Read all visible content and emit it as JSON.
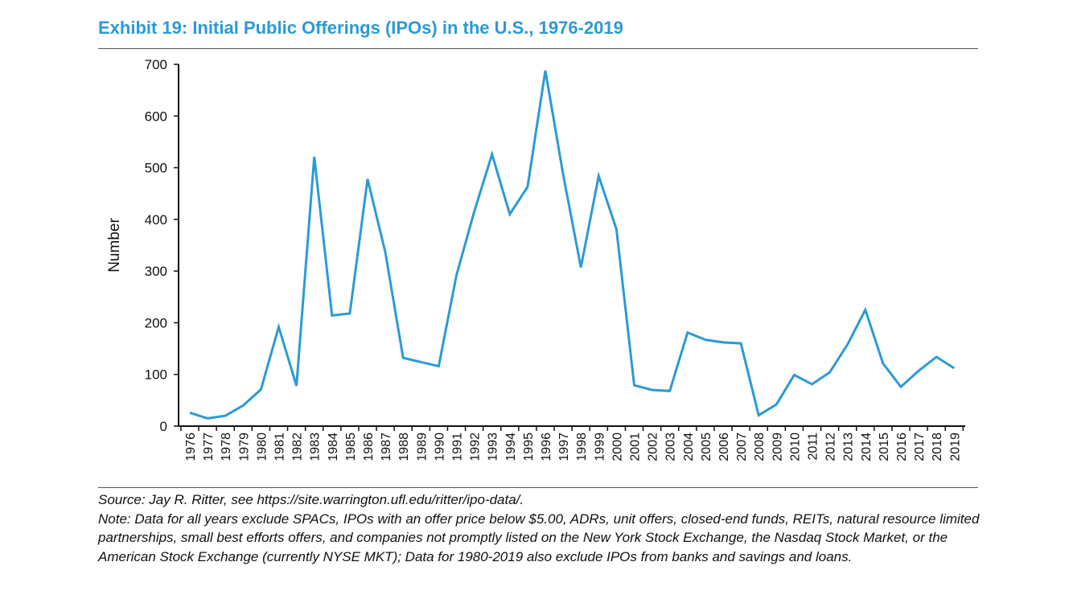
{
  "title": "Exhibit 19: Initial Public Offerings (IPOs) in the U.S., 1976-2019",
  "colors": {
    "title": "#2b9ad6",
    "line": "#2b9ad6",
    "axis": "#111111",
    "rule": "#555555"
  },
  "chart_data": {
    "type": "line",
    "title": "Exhibit 19: Initial Public Offerings (IPOs) in the U.S., 1976-2019",
    "xlabel": "",
    "ylabel": "Number",
    "ylim": [
      0,
      700
    ],
    "yticks": [
      0,
      100,
      200,
      300,
      400,
      500,
      600,
      700
    ],
    "grid": false,
    "legend": "none",
    "categories": [
      "1976",
      "1977",
      "1978",
      "1979",
      "1980",
      "1981",
      "1982",
      "1983",
      "1984",
      "1985",
      "1986",
      "1987",
      "1988",
      "1989",
      "1990",
      "1991",
      "1992",
      "1993",
      "1994",
      "1995",
      "1996",
      "1997",
      "1998",
      "1999",
      "2000",
      "2001",
      "2002",
      "2003",
      "2004",
      "2005",
      "2006",
      "2007",
      "2008",
      "2009",
      "2010",
      "2011",
      "2012",
      "2013",
      "2014",
      "2015",
      "2016",
      "2017",
      "2018",
      "2019"
    ],
    "series": [
      {
        "values": [
          26,
          15,
          20,
          40,
          71,
          192,
          78,
          521,
          214,
          218,
          478,
          336,
          132,
          124,
          116,
          292,
          415,
          526,
          410,
          463,
          688,
          487,
          307,
          484,
          381,
          79,
          70,
          68,
          181,
          167,
          162,
          160,
          21,
          42,
          99,
          81,
          104,
          158,
          225,
          121,
          76,
          107,
          134,
          112
        ]
      }
    ]
  },
  "source": "Source: Jay R. Ritter, see https://site.warrington.ufl.edu/ritter/ipo-data/.",
  "note": "Note: Data for all years exclude SPACs, IPOs with an offer price below $5.00, ADRs, unit offers, closed-end funds, REITs, natural resource limited partnerships, small best efforts offers, and companies not promptly listed on the New York Stock Exchange, the Nasdaq Stock Market, or the American Stock Exchange (currently NYSE MKT); Data for 1980-2019 also exclude IPOs from banks and savings and loans."
}
